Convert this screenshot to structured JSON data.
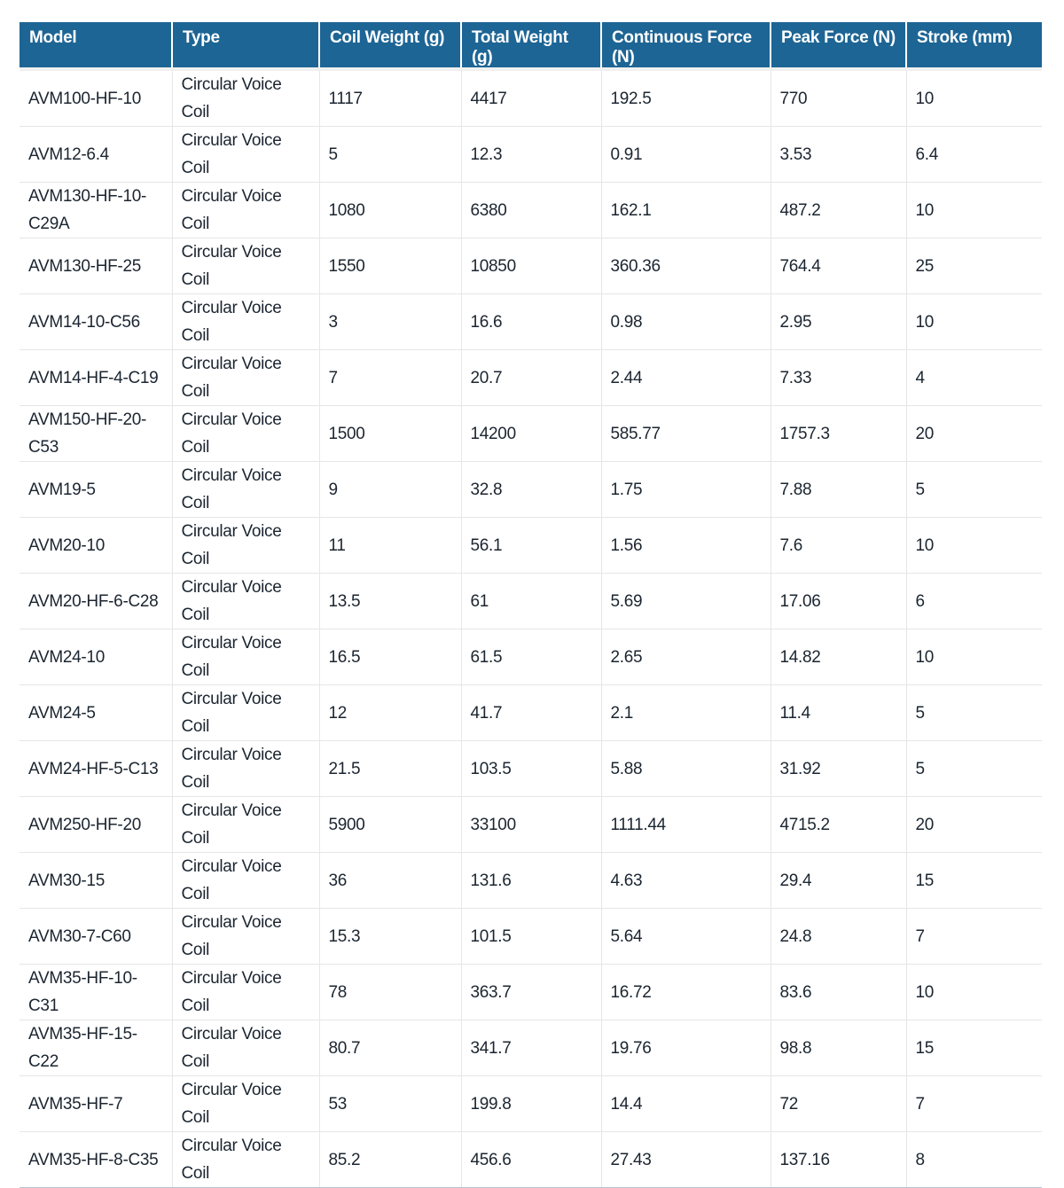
{
  "table": {
    "headers": [
      "Model",
      "Type",
      "Coil Weight (g)",
      "Total Weight (g)",
      "Continuous Force (N)",
      "Peak Force (N)",
      "Stroke (mm)"
    ],
    "rows": [
      [
        "AVM100-HF-10",
        "Circular Voice Coil",
        "1117",
        "4417",
        "192.5",
        "770",
        "10"
      ],
      [
        "AVM12-6.4",
        "Circular Voice Coil",
        "5",
        "12.3",
        "0.91",
        "3.53",
        "6.4"
      ],
      [
        "AVM130-HF-10-C29A",
        "Circular Voice Coil",
        "1080",
        "6380",
        "162.1",
        "487.2",
        "10"
      ],
      [
        "AVM130-HF-25",
        "Circular Voice Coil",
        "1550",
        "10850",
        "360.36",
        "764.4",
        "25"
      ],
      [
        "AVM14-10-C56",
        "Circular Voice Coil",
        "3",
        "16.6",
        "0.98",
        "2.95",
        "10"
      ],
      [
        "AVM14-HF-4-C19",
        "Circular Voice Coil",
        "7",
        "20.7",
        "2.44",
        "7.33",
        "4"
      ],
      [
        "AVM150-HF-20-C53",
        "Circular Voice Coil",
        "1500",
        "14200",
        "585.77",
        "1757.3",
        "20"
      ],
      [
        "AVM19-5",
        "Circular Voice Coil",
        "9",
        "32.8",
        "1.75",
        "7.88",
        "5"
      ],
      [
        "AVM20-10",
        "Circular Voice Coil",
        "11",
        "56.1",
        "1.56",
        "7.6",
        "10"
      ],
      [
        "AVM20-HF-6-C28",
        "Circular Voice Coil",
        "13.5",
        "61",
        "5.69",
        "17.06",
        "6"
      ],
      [
        "AVM24-10",
        "Circular Voice Coil",
        "16.5",
        "61.5",
        "2.65",
        "14.82",
        "10"
      ],
      [
        "AVM24-5",
        "Circular Voice Coil",
        "12",
        "41.7",
        "2.1",
        "11.4",
        "5"
      ],
      [
        "AVM24-HF-5-C13",
        "Circular Voice Coil",
        "21.5",
        "103.5",
        "5.88",
        "31.92",
        "5"
      ],
      [
        "AVM250-HF-20",
        "Circular Voice Coil",
        "5900",
        "33100",
        "1111.44",
        "4715.2",
        "20"
      ],
      [
        "AVM30-15",
        "Circular Voice Coil",
        "36",
        "131.6",
        "4.63",
        "29.4",
        "15"
      ],
      [
        "AVM30-7-C60",
        "Circular Voice Coil",
        "15.3",
        "101.5",
        "5.64",
        "24.8",
        "7"
      ],
      [
        "AVM35-HF-10-C31",
        "Circular Voice Coil",
        "78",
        "363.7",
        "16.72",
        "83.6",
        "10"
      ],
      [
        "AVM35-HF-15-C22",
        "Circular Voice Coil",
        "80.7",
        "341.7",
        "19.76",
        "98.8",
        "15"
      ],
      [
        "AVM35-HF-7",
        "Circular Voice Coil",
        "53",
        "199.8",
        "14.4",
        "72",
        "7"
      ],
      [
        "AVM35-HF-8-C35",
        "Circular Voice Coil",
        "85.2",
        "456.6",
        "27.43",
        "137.16",
        "8"
      ]
    ]
  },
  "colors": {
    "header_bg": "#1d6595",
    "header_text": "#ffffff",
    "body_text": "#1b2530",
    "grid": "#e6e6e6"
  }
}
